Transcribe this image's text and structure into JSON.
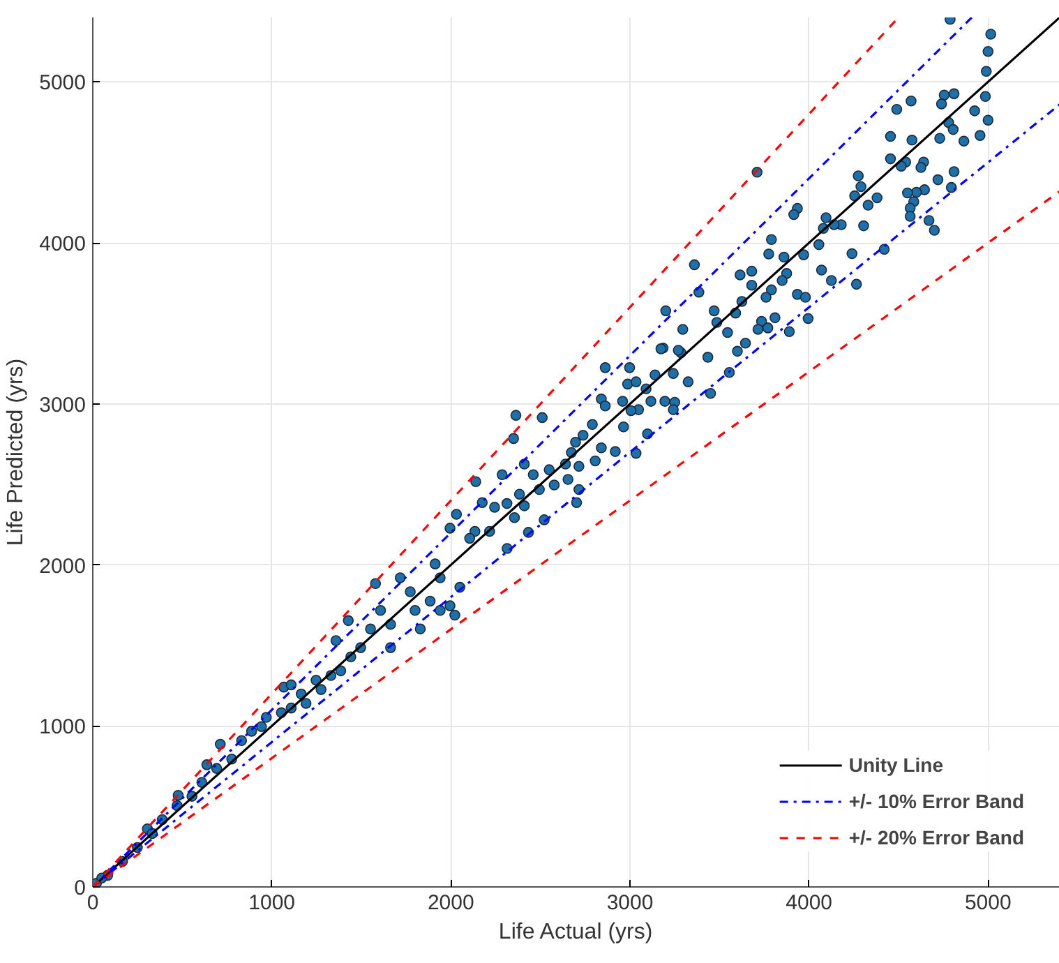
{
  "chart_data": {
    "type": "scatter",
    "xlabel": "Life Actual (yrs)",
    "ylabel": "Life Predicted (yrs)",
    "xlim": [
      0,
      5400
    ],
    "ylim": [
      0,
      5400
    ],
    "xticks": [
      0,
      1000,
      2000,
      3000,
      4000,
      5000
    ],
    "yticks": [
      0,
      1000,
      2000,
      3000,
      4000,
      5000
    ],
    "grid": true,
    "legend": "bottom right",
    "series": [
      {
        "color": "#1f6fa8",
        "marker": "circle",
        "x": [
          4788,
          5015,
          5000,
          4990,
          4985,
          5000,
          4955,
          4925,
          4755,
          4810,
          4740,
          4780,
          4805,
          4865,
          4730,
          4810,
          4795,
          4720,
          4700,
          4670,
          4645,
          4600,
          4550,
          4585,
          4565,
          4565,
          4640,
          4625,
          4540,
          4515,
          4455,
          4575,
          4455,
          4490,
          4570,
          4420,
          4380,
          4330,
          4290,
          4275,
          4255,
          4305,
          4240,
          4265,
          4180,
          4140,
          4095,
          4080,
          4055,
          3935,
          3915,
          3790,
          3775,
          3860,
          3970,
          4070,
          4125,
          3935,
          3980,
          3995,
          3890,
          3875,
          3850,
          3790,
          3760,
          3680,
          3615,
          3680,
          3625,
          3710,
          3360,
          3385,
          3200,
          3295,
          3185,
          3285,
          3470,
          3485,
          3590,
          3545,
          3645,
          3735,
          3810,
          3770,
          3715,
          3600,
          3435,
          2862,
          2998,
          2987,
          3034,
          3090,
          3140,
          3173,
          3270,
          3242,
          3325,
          3195,
          3250,
          3242,
          3117,
          3048,
          3450,
          3555,
          2840,
          2862,
          2959,
          3006,
          2964,
          2790,
          2738,
          2696,
          2673,
          2840,
          2918,
          3034,
          3098,
          2806,
          2363,
          2510,
          2350,
          2410,
          2549,
          2640,
          2715,
          2577,
          2654,
          2715,
          2702,
          2460,
          2494,
          2383,
          2410,
          2286,
          2175,
          2244,
          2313,
          2139,
          2031,
          1995,
          2134,
          2216,
          2314,
          2433,
          2521,
          2355,
          2105,
          1579,
          1427,
          1358,
          1067,
          712,
          637,
          477,
          305,
          1663,
          1829,
          1940,
          1995,
          1884,
          1773,
          1717,
          1912,
          1940,
          2050,
          1607,
          1551,
          1496,
          1441,
          1330,
          1247,
          1164,
          1108,
          969,
          887,
          831,
          776,
          692,
          609,
          554,
          471,
          388,
          332,
          249,
          166,
          83,
          1385,
          1275,
          1191,
          1053,
          942,
          1108,
          1800,
          2022,
          1663,
          20,
          50
        ],
        "values": [
          5388,
          5296,
          5189,
          5065,
          4909,
          4762,
          4667,
          4820,
          4918,
          4926,
          4863,
          4747,
          4704,
          4632,
          4649,
          4442,
          4344,
          4392,
          4078,
          4139,
          4330,
          4314,
          4310,
          4256,
          4216,
          4165,
          4502,
          4468,
          4502,
          4476,
          4522,
          4638,
          4661,
          4829,
          4881,
          3960,
          4280,
          4234,
          4349,
          4416,
          4292,
          4106,
          3933,
          3743,
          4113,
          4113,
          4156,
          4090,
          3989,
          4214,
          4176,
          4021,
          3931,
          3911,
          3926,
          3831,
          3766,
          3680,
          3662,
          3530,
          3449,
          3810,
          3766,
          3708,
          3662,
          3824,
          3801,
          3737,
          3636,
          4439,
          3864,
          3694,
          3578,
          3463,
          3347,
          3318,
          3578,
          3506,
          3564,
          3443,
          3377,
          3512,
          3535,
          3472,
          3463,
          3327,
          3290,
          3225,
          3225,
          3123,
          3137,
          3093,
          3180,
          3342,
          3333,
          3189,
          3137,
          3016,
          3010,
          2964,
          3016,
          2964,
          3065,
          3195,
          3030,
          2987,
          3016,
          2958,
          2857,
          2872,
          2805,
          2762,
          2698,
          2727,
          2704,
          2693,
          2814,
          2646,
          2929,
          2915,
          2785,
          2626,
          2591,
          2626,
          2612,
          2496,
          2531,
          2468,
          2387,
          2560,
          2468,
          2439,
          2367,
          2560,
          2387,
          2358,
          2381,
          2517,
          2314,
          2228,
          2208,
          2208,
          2102,
          2202,
          2280,
          2294,
          2165,
          1884,
          1654,
          1530,
          1241,
          886,
          759,
          569,
          361,
          1486,
          1602,
          1717,
          1746,
          1775,
          1833,
          1920,
          2006,
          1920,
          1861,
          1717,
          1602,
          1486,
          1429,
          1313,
          1284,
          1198,
          1111,
          1053,
          967,
          909,
          794,
          736,
          649,
          563,
          505,
          418,
          332,
          245,
          158,
          72,
          1342,
          1226,
          1140,
          1082,
          996,
          1255,
          1717,
          1688,
          1631,
          22,
          55
        ]
      },
      {
        "type": "line",
        "name": "Unity Line",
        "color": "#000000",
        "line_style": "solid",
        "marker": "none",
        "x": [
          0,
          5400
        ],
        "values": [
          0,
          5400
        ]
      },
      {
        "type": "line",
        "name": "+/- 10% Error Band",
        "color": "#0000ff",
        "line_style": "dashdot",
        "marker": "none",
        "x": [
          0,
          4909
        ],
        "values": [
          0,
          5400
        ]
      },
      {
        "type": "line",
        "color": "#0000ff",
        "line_style": "dashdot",
        "marker": "none",
        "x": [
          0,
          5400
        ],
        "values": [
          0,
          4860
        ]
      },
      {
        "type": "line",
        "name": "+/- 20% Error Band",
        "color": "#ff0000",
        "line_style": "dashed",
        "marker": "none",
        "x": [
          0,
          4500
        ],
        "values": [
          0,
          5400
        ]
      },
      {
        "type": "line",
        "color": "#ff0000",
        "line_style": "dashed",
        "marker": "none",
        "x": [
          0,
          5400
        ],
        "values": [
          0,
          4320
        ]
      }
    ]
  }
}
